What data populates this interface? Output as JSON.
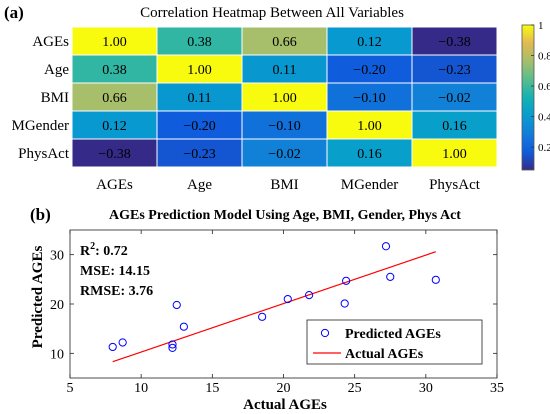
{
  "chart_data": [
    {
      "panel_label": "(a)",
      "type": "heatmap",
      "title": "Correlation Heatmap Between All Variables",
      "rows": [
        "AGEs",
        "Age",
        "BMI",
        "MGender",
        "PhysAct"
      ],
      "columns": [
        "AGEs",
        "Age",
        "BMI",
        "MGender",
        "PhysAct"
      ],
      "values": [
        [
          1.0,
          0.38,
          0.66,
          0.12,
          -0.38
        ],
        [
          0.38,
          1.0,
          0.11,
          -0.2,
          -0.23
        ],
        [
          0.66,
          0.11,
          1.0,
          -0.1,
          -0.02
        ],
        [
          0.12,
          -0.2,
          -0.1,
          1.0,
          0.16
        ],
        [
          -0.38,
          -0.23,
          -0.02,
          0.16,
          1.0
        ]
      ],
      "colorbar": {
        "ticks": [
          "0.2",
          "0.4",
          "0.6",
          "0.8",
          "1"
        ],
        "colormap": "parula"
      }
    },
    {
      "panel_label": "(b)",
      "type": "scatter",
      "title": "AGEs Prediction Model Using Age, BMI, Gender, Phys Act",
      "xlabel": "Actual AGEs",
      "ylabel": "Predicted AGEs",
      "xlim": [
        5,
        35
      ],
      "ylim": [
        5,
        35
      ],
      "xticks": [
        "5",
        "10",
        "15",
        "20",
        "25",
        "30",
        "35"
      ],
      "yticks": [
        "10",
        "20",
        "30"
      ],
      "annotations": [
        "R²: 0.72",
        "MSE: 14.15",
        "RMSE: 3.76"
      ],
      "legend": {
        "position": "bottom-right",
        "entries": [
          "Predicted AGEs",
          "Actual AGEs"
        ]
      },
      "series": [
        {
          "name": "Predicted AGEs",
          "kind": "markers",
          "color": "#0000ff",
          "points": [
            [
              8.0,
              11.3
            ],
            [
              8.7,
              12.2
            ],
            [
              12.2,
              11.8
            ],
            [
              12.2,
              11.1
            ],
            [
              12.5,
              19.8
            ],
            [
              13.0,
              15.4
            ],
            [
              18.5,
              17.4
            ],
            [
              20.3,
              21.0
            ],
            [
              21.8,
              21.8
            ],
            [
              22.5,
              15.1
            ],
            [
              23.3,
              12.0
            ],
            [
              24.3,
              20.1
            ],
            [
              24.4,
              24.7
            ],
            [
              27.2,
              31.7
            ],
            [
              27.5,
              25.5
            ],
            [
              30.7,
              24.9
            ]
          ]
        },
        {
          "name": "Actual AGEs",
          "kind": "line",
          "color": "#ff0000",
          "points": [
            [
              8.0,
              8.3
            ],
            [
              30.7,
              30.6
            ]
          ]
        }
      ]
    }
  ]
}
